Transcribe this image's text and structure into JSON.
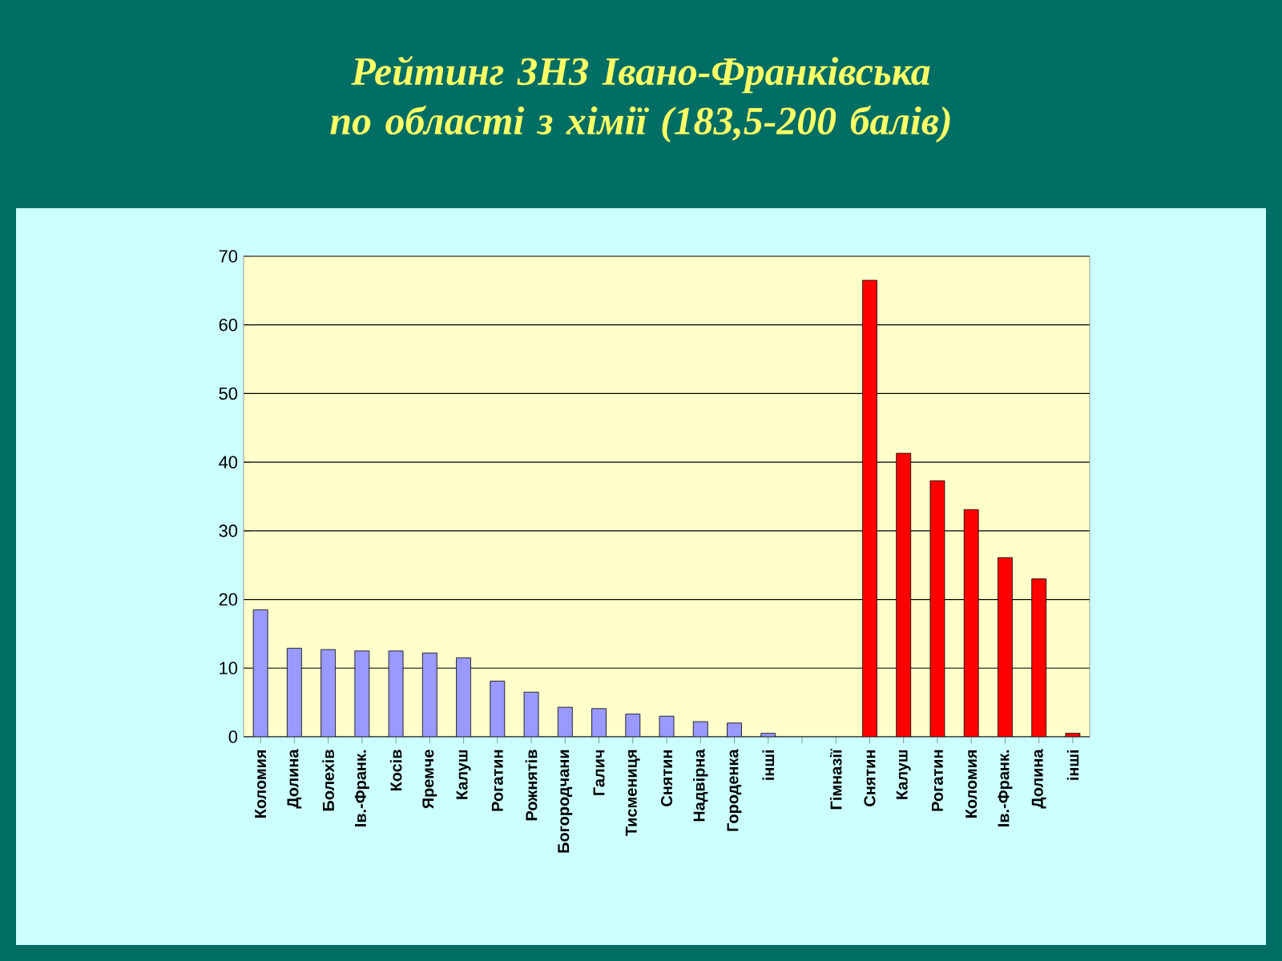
{
  "chart_data": {
    "type": "bar",
    "title": "Рейтинг  ЗНЗ Івано-Франківська по області  з хімії (183,5-200 балів)",
    "categories": [
      "Коломия",
      "Долина",
      "Болехів",
      "Ів.-Франк.",
      "Косів",
      "Яремче",
      "Калуш",
      "Рогатин",
      "Рожнятів",
      "Богородчани",
      "Галич",
      "Тисмениця",
      "Снятин",
      "Надвірна",
      "Городенка",
      "інші",
      null,
      "Гімназії",
      "Снятин",
      "Калуш",
      "Рогатин",
      "Коломия",
      "Ів.-Франк.",
      "Долина",
      "інші"
    ],
    "values": [
      18.5,
      12.9,
      12.7,
      12.5,
      12.5,
      12.2,
      11.5,
      8.1,
      6.5,
      4.3,
      4.1,
      3.3,
      3,
      2.2,
      2,
      0.5,
      null,
      null,
      66.5,
      41.3,
      37.3,
      33.1,
      26.1,
      23,
      0.5
    ],
    "colors": [
      "#9999ff",
      "#9999ff",
      "#9999ff",
      "#9999ff",
      "#9999ff",
      "#9999ff",
      "#9999ff",
      "#9999ff",
      "#9999ff",
      "#9999ff",
      "#9999ff",
      "#9999ff",
      "#9999ff",
      "#9999ff",
      "#9999ff",
      "#9999ff",
      "#9999ff",
      "#ff0000",
      "#ff0000",
      "#ff0000",
      "#ff0000",
      "#ff0000",
      "#ff0000",
      "#ff0000",
      "#ff0000"
    ],
    "ylim": [
      0,
      70
    ],
    "yticks": [
      0,
      10,
      20,
      30,
      40,
      50,
      60,
      70
    ],
    "grid": "y"
  }
}
